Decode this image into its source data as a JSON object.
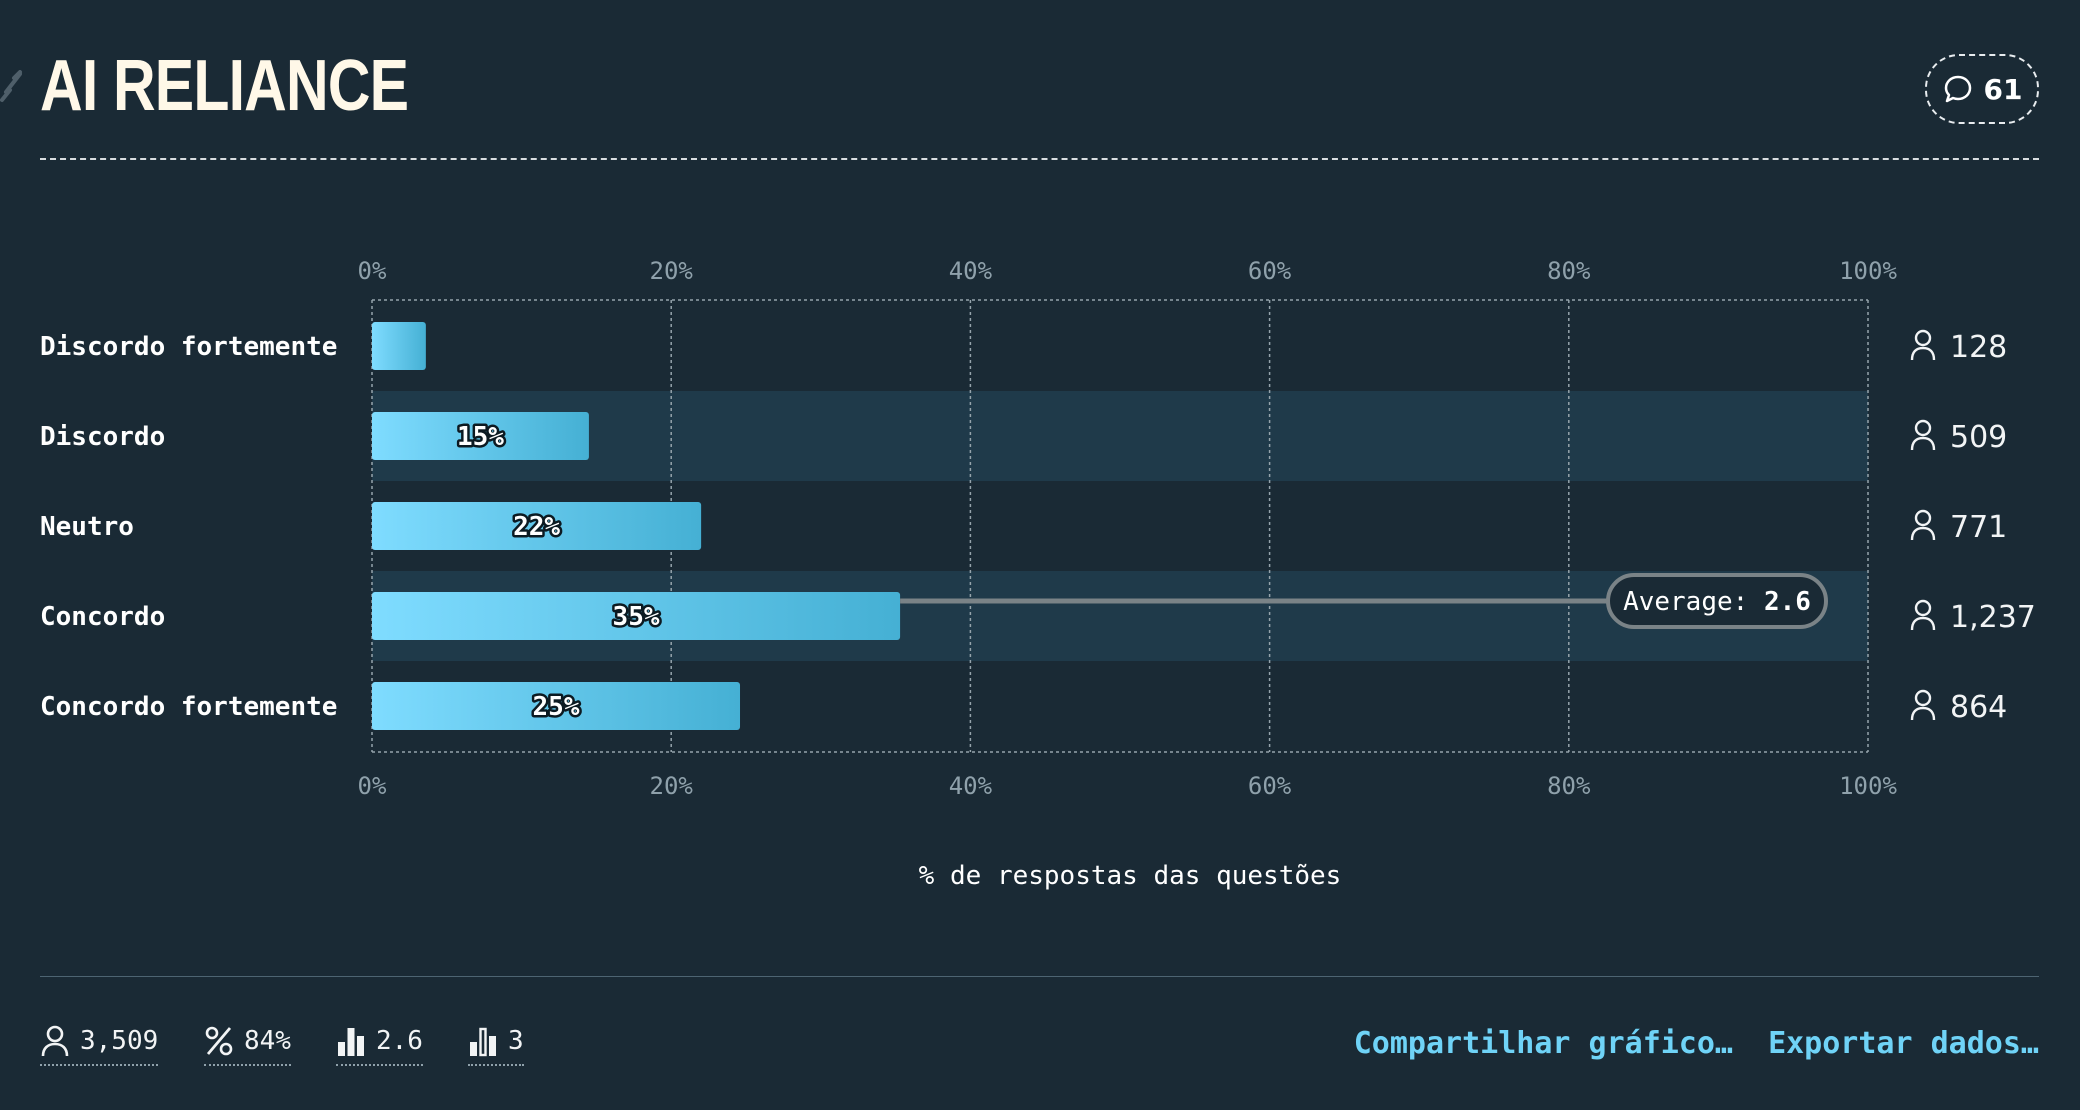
{
  "header": {
    "title": "AI RELIANCE",
    "comment_count": "61"
  },
  "chart_data": {
    "type": "bar",
    "orientation": "horizontal",
    "categories": [
      "Discordo fortemente",
      "Discordo",
      "Neutro",
      "Concordo",
      "Concordo fortemente"
    ],
    "values": [
      3.6,
      14.5,
      22.0,
      35.3,
      24.6
    ],
    "value_labels": [
      "",
      "15%",
      "22%",
      "35%",
      "25%"
    ],
    "counts": [
      "128",
      "509",
      "771",
      "1,237",
      "864"
    ],
    "xlim": [
      0,
      100
    ],
    "ticks": [
      "0%",
      "20%",
      "40%",
      "60%",
      "80%",
      "100%"
    ],
    "tick_values": [
      0,
      20,
      40,
      60,
      80,
      100
    ],
    "xlabel": "% de respostas das questões",
    "average": {
      "label": "Average:",
      "value": "2.6"
    },
    "colors": {
      "bar_start": "#7fdcff",
      "bar_end": "#45b0d4",
      "row_band": "#1f3a4a",
      "avg_line": "#7a8387"
    }
  },
  "footer": {
    "stats": [
      {
        "icon": "person-icon",
        "value": "3,509"
      },
      {
        "icon": "percent-icon",
        "value": "84%"
      },
      {
        "icon": "bar-chart-icon",
        "value": "2.6"
      },
      {
        "icon": "bar-chart-outline-icon",
        "value": "3"
      }
    ],
    "share_label": "Compartilhar gráfico…",
    "export_label": "Exportar dados…"
  }
}
